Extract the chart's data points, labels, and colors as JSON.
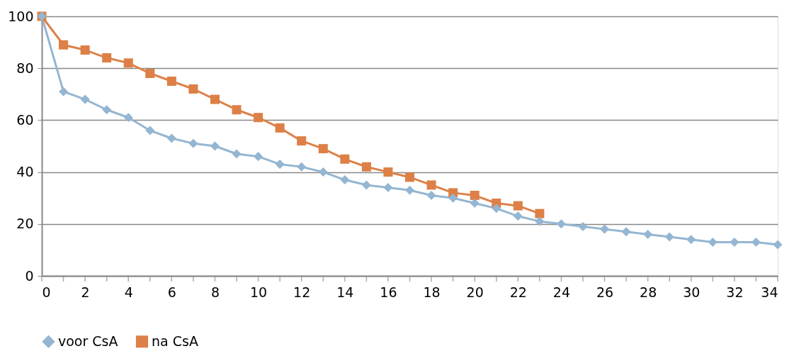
{
  "chart_data": {
    "type": "line",
    "x": [
      0,
      1,
      2,
      3,
      4,
      5,
      6,
      7,
      8,
      9,
      10,
      11,
      12,
      13,
      14,
      15,
      16,
      17,
      18,
      19,
      20,
      21,
      22,
      23,
      24,
      25,
      26,
      27,
      28,
      29,
      30,
      31,
      32,
      33,
      34
    ],
    "series": [
      {
        "name": "voor CsA",
        "color": "#94b6d2",
        "marker": "diamond",
        "values": [
          100,
          71,
          68,
          64,
          61,
          56,
          53,
          51,
          50,
          47,
          46,
          43,
          42,
          40,
          37,
          35,
          34,
          33,
          31,
          30,
          28,
          26,
          23,
          21,
          20,
          19,
          18,
          17,
          16,
          15,
          14,
          13,
          13,
          13,
          12
        ]
      },
      {
        "name": "na CsA",
        "color": "#dd8047",
        "marker": "square",
        "values": [
          100,
          89,
          87,
          84,
          82,
          78,
          75,
          72,
          68,
          64,
          61,
          57,
          52,
          49,
          45,
          42,
          40,
          38,
          35,
          32,
          31,
          28,
          27,
          24,
          null,
          null,
          null,
          null,
          null,
          null,
          null,
          null,
          null,
          null,
          null
        ]
      }
    ],
    "xlim": [
      0,
      34
    ],
    "xticks": [
      0,
      {
        "value": 1,
        "label": null
      },
      2,
      {
        "value": 3,
        "label": null
      },
      4,
      {
        "value": 5,
        "label": null
      },
      6,
      {
        "value": 7,
        "label": null
      },
      8,
      {
        "value": 9,
        "label": null
      },
      10,
      {
        "value": 11,
        "label": null
      },
      12,
      {
        "value": 13,
        "label": null
      },
      14,
      {
        "value": 15,
        "label": null
      },
      16,
      {
        "value": 17,
        "label": null
      },
      18,
      {
        "value": 19,
        "label": null
      },
      20,
      {
        "value": 21,
        "label": null
      },
      22,
      {
        "value": 23,
        "label": null
      },
      24,
      {
        "value": 25,
        "label": null
      },
      26,
      {
        "value": 27,
        "label": null
      },
      28,
      {
        "value": 29,
        "label": null
      },
      30,
      {
        "value": 31,
        "label": null
      },
      32,
      {
        "value": 33,
        "label": null
      },
      34
    ],
    "ylim": [
      0,
      100
    ],
    "yticks": [
      0,
      20,
      40,
      60,
      80,
      100
    ],
    "grid": "y",
    "legend": "bottom",
    "line_style": "solid"
  }
}
